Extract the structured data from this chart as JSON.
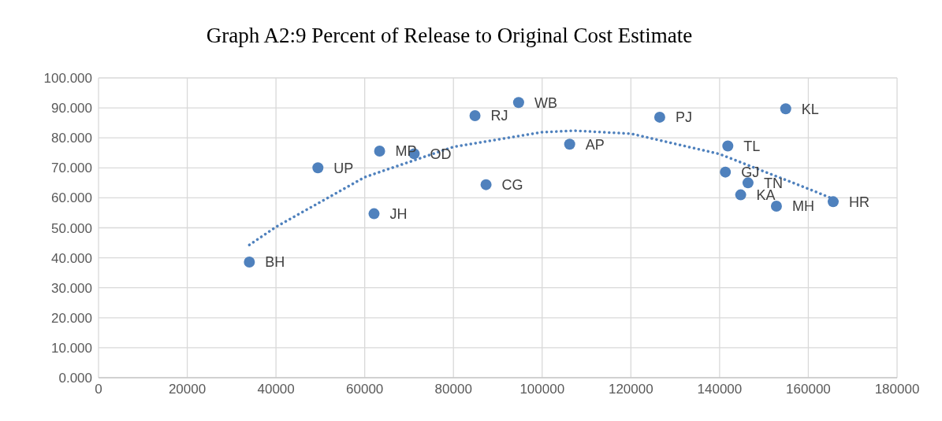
{
  "chart_data": {
    "type": "scatter",
    "title": "Graph A2:9 Percent of Release to Original Cost Estimate",
    "series": [
      {
        "color": "#4f81bd",
        "marker": "circle",
        "x": [
          34000,
          49450,
          63360,
          71150,
          62100,
          84860,
          87350,
          94690,
          106200,
          126500,
          154900,
          141850,
          141300,
          146400,
          144750,
          152800,
          165600
        ],
        "values": [
          38.6,
          70.0,
          75.6,
          74.7,
          54.7,
          87.4,
          64.4,
          91.8,
          77.9,
          86.9,
          89.7,
          77.3,
          68.6,
          65.0,
          61.0,
          57.2,
          58.7
        ]
      },
      {
        "type": "line",
        "color": "#4f81bd",
        "marker": "none",
        "line_style": "dotted",
        "x": [
          34000,
          40000,
          60000,
          80000,
          100000,
          107300,
          120000,
          140000,
          160000,
          165000
        ],
        "values": [
          44.3,
          50.3,
          66.9,
          77.0,
          81.9,
          82.4,
          81.4,
          74.6,
          63.0,
          60.0
        ]
      }
    ],
    "annotations": [
      {
        "text": "BH",
        "x": 34000,
        "y": 38.6
      },
      {
        "text": "UP",
        "x": 49450,
        "y": 70.0
      },
      {
        "text": "MP",
        "x": 63360,
        "y": 75.6
      },
      {
        "text": "OD",
        "x": 71150,
        "y": 74.7
      },
      {
        "text": "JH",
        "x": 62100,
        "y": 54.7
      },
      {
        "text": "RJ",
        "x": 84860,
        "y": 87.4
      },
      {
        "text": "CG",
        "x": 87350,
        "y": 64.4
      },
      {
        "text": "WB",
        "x": 94690,
        "y": 91.8
      },
      {
        "text": "AP",
        "x": 106200,
        "y": 77.9
      },
      {
        "text": "PJ",
        "x": 126500,
        "y": 86.9
      },
      {
        "text": "KL",
        "x": 154900,
        "y": 89.7
      },
      {
        "text": "TL",
        "x": 141850,
        "y": 77.3
      },
      {
        "text": "GJ",
        "x": 141300,
        "y": 68.6
      },
      {
        "text": "TN",
        "x": 146400,
        "y": 65.0
      },
      {
        "text": "KA",
        "x": 144750,
        "y": 61.0
      },
      {
        "text": "MH",
        "x": 152800,
        "y": 57.2
      },
      {
        "text": "HR",
        "x": 165600,
        "y": 58.7
      }
    ],
    "xlim": [
      0,
      180000
    ],
    "xticks": [
      0,
      20000,
      40000,
      60000,
      80000,
      100000,
      120000,
      140000,
      160000,
      180000
    ],
    "ylim": [
      0,
      100
    ],
    "yticks": [
      {
        "value": 0,
        "label": "0.000"
      },
      {
        "value": 10,
        "label": "10.000"
      },
      {
        "value": 20,
        "label": "20.000"
      },
      {
        "value": 30,
        "label": "30.000"
      },
      {
        "value": 40,
        "label": "40.000"
      },
      {
        "value": 50,
        "label": "50.000"
      },
      {
        "value": 60,
        "label": "60.000"
      },
      {
        "value": 70,
        "label": "70.000"
      },
      {
        "value": 80,
        "label": "80.000"
      },
      {
        "value": 90,
        "label": "90.000"
      },
      {
        "value": 100,
        "label": "100.000"
      }
    ],
    "grid": true
  }
}
